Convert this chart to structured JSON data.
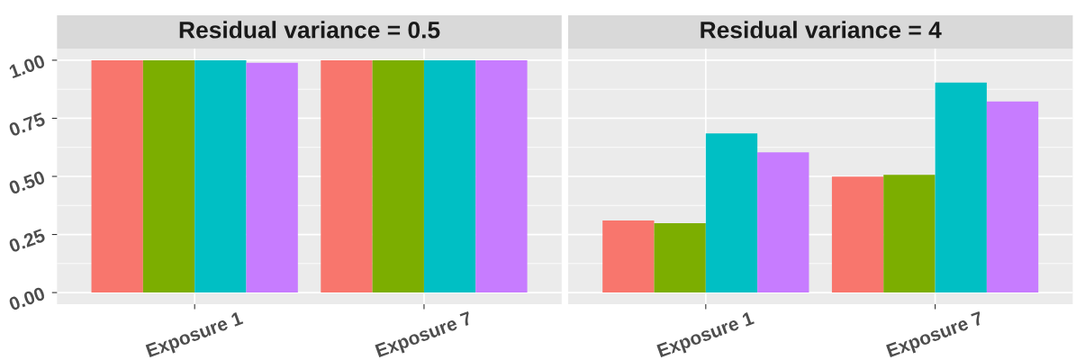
{
  "chart_data": [
    {
      "type": "bar",
      "title": "Residual variance = 0.5",
      "categories": [
        "Exposure 1",
        "Exposure 7"
      ],
      "series": [
        {
          "color": "#f8766d",
          "values": [
            1.0,
            1.0
          ]
        },
        {
          "color": "#7cae00",
          "values": [
            1.0,
            1.0
          ]
        },
        {
          "color": "#00bfc4",
          "values": [
            1.0,
            1.0
          ]
        },
        {
          "color": "#c77cff",
          "values": [
            0.989,
            1.0
          ]
        }
      ],
      "ylim": [
        -0.05,
        1.05
      ],
      "yticks": [
        {
          "value": 0,
          "label": "0.00"
        },
        {
          "value": 0.25,
          "label": "0.25"
        },
        {
          "value": 0.5,
          "label": "0.50"
        },
        {
          "value": 0.75,
          "label": "0.75"
        },
        {
          "value": 1,
          "label": "1.00"
        }
      ],
      "grid": true
    },
    {
      "type": "bar",
      "title": "Residual variance = 4",
      "categories": [
        "Exposure 1",
        "Exposure 7"
      ],
      "series": [
        {
          "color": "#f8766d",
          "values": [
            0.31,
            0.499
          ]
        },
        {
          "color": "#7cae00",
          "values": [
            0.299,
            0.507
          ]
        },
        {
          "color": "#00bfc4",
          "values": [
            0.685,
            0.904
          ]
        },
        {
          "color": "#c77cff",
          "values": [
            0.604,
            0.822
          ]
        }
      ],
      "ylim": [
        -0.05,
        1.05
      ],
      "yticks": [
        0,
        0.25,
        0.5,
        0.75,
        1
      ],
      "grid": true,
      "tick_labels": "x"
    }
  ]
}
